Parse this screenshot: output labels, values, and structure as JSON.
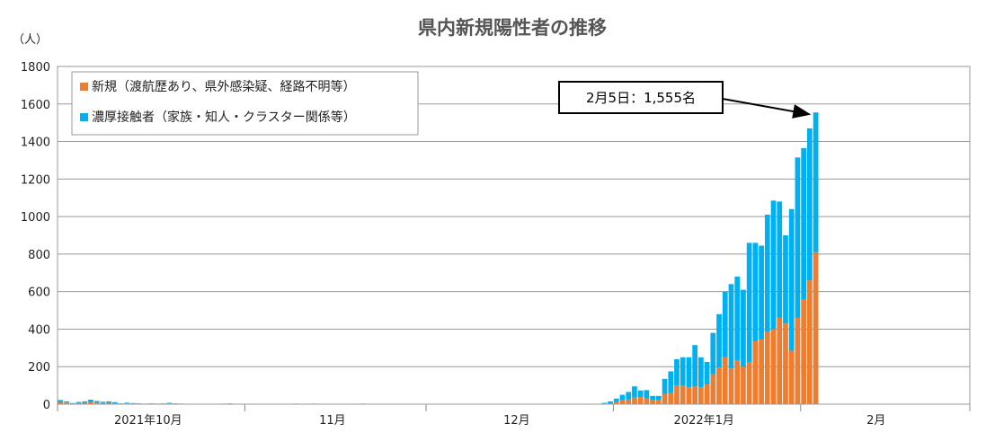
{
  "chart_data": {
    "type": "bar",
    "stacked": true,
    "title": "県内新規陽性者の推移",
    "ylabel": "（人）",
    "ylim": [
      0,
      1800
    ],
    "yticks": [
      0,
      200,
      400,
      600,
      800,
      1000,
      1200,
      1400,
      1600,
      1800
    ],
    "month_labels": [
      {
        "label": "2021年10月",
        "day_index": 15
      },
      {
        "label": "11月",
        "day_index": 45.5
      },
      {
        "label": "12月",
        "day_index": 76
      },
      {
        "label": "2022年1月",
        "day_index": 107
      },
      {
        "label": "2月",
        "day_index": 135.5
      }
    ],
    "month_boundaries": [
      0,
      31,
      61,
      92,
      123,
      151
    ],
    "series": [
      {
        "name": "新規（渡航歴あり、県外感染疑、経路不明等）",
        "color": "#ED7D31",
        "values": [
          10,
          8,
          3,
          6,
          7,
          12,
          8,
          6,
          7,
          5,
          2,
          4,
          3,
          2,
          1,
          2,
          1,
          2,
          3,
          2,
          1,
          1,
          0,
          1,
          0,
          1,
          0,
          1,
          1,
          0,
          1,
          0,
          0,
          0,
          0,
          0,
          0,
          0,
          0,
          1,
          0,
          0,
          1,
          1,
          0,
          0,
          0,
          0,
          0,
          0,
          1,
          0,
          0,
          0,
          0,
          0,
          0,
          0,
          0,
          0,
          0,
          0,
          0,
          0,
          0,
          0,
          0,
          0,
          0,
          0,
          0,
          0,
          0,
          0,
          0,
          0,
          0,
          0,
          0,
          0,
          0,
          0,
          0,
          0,
          0,
          0,
          0,
          0,
          0,
          0,
          3,
          5,
          10,
          20,
          25,
          35,
          38,
          30,
          20,
          22,
          55,
          60,
          100,
          100,
          90,
          95,
          90,
          105,
          160,
          195,
          250,
          190,
          235,
          200,
          225,
          335,
          345,
          385,
          400,
          460,
          430,
          285,
          460,
          560,
          660,
          810,
          0,
          0,
          0,
          0,
          0,
          0,
          0,
          0,
          0,
          0,
          0,
          0,
          0,
          0,
          0,
          0,
          0,
          0,
          0,
          0,
          0,
          0,
          0,
          0,
          0
        ]
      },
      {
        "name": "濃厚接触者（家族・知人・クラスター関係等）",
        "color": "#00B0F0",
        "values": [
          12,
          7,
          3,
          6,
          8,
          12,
          9,
          7,
          8,
          6,
          2,
          4,
          3,
          2,
          2,
          2,
          2,
          2,
          4,
          2,
          2,
          1,
          0,
          1,
          0,
          1,
          1,
          2,
          3,
          0,
          1,
          0,
          0,
          0,
          0,
          0,
          0,
          1,
          1,
          2,
          2,
          1,
          2,
          1,
          0,
          0,
          0,
          0,
          0,
          0,
          2,
          1,
          0,
          0,
          0,
          0,
          0,
          0,
          0,
          0,
          0,
          0,
          0,
          0,
          0,
          0,
          0,
          0,
          0,
          1,
          0,
          0,
          0,
          0,
          1,
          0,
          2,
          0,
          0,
          0,
          0,
          0,
          0,
          1,
          0,
          0,
          0,
          0,
          2,
          0,
          4,
          10,
          20,
          30,
          40,
          60,
          35,
          45,
          24,
          22,
          80,
          115,
          140,
          150,
          160,
          220,
          160,
          120,
          220,
          285,
          350,
          450,
          445,
          410,
          635,
          525,
          500,
          625,
          685,
          620,
          470,
          755,
          855,
          805,
          810,
          745,
          0,
          0,
          0,
          0,
          0,
          0,
          0,
          0,
          0,
          0,
          0,
          0,
          0,
          0,
          0,
          0,
          0,
          0,
          0,
          0,
          0,
          0,
          0,
          0,
          0
        ]
      }
    ],
    "annotation": {
      "text": "2月5日：1,555名",
      "target_day_index": 125,
      "target_value": 1555
    }
  },
  "legend": {
    "position": "top-left"
  }
}
